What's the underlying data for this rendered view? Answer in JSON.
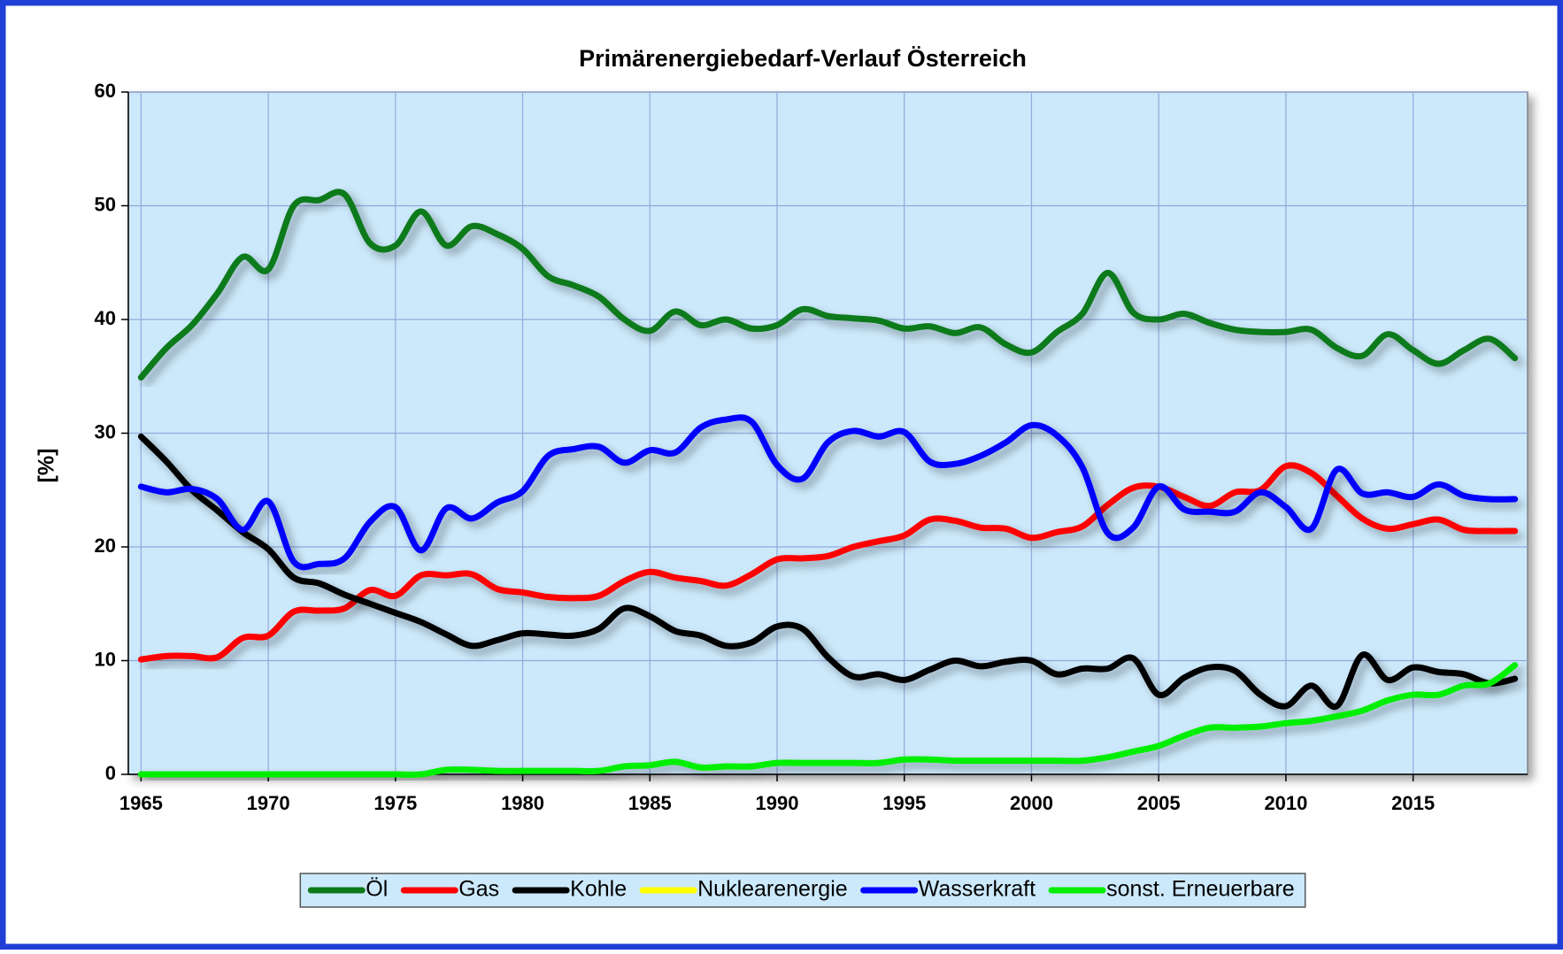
{
  "chart_data": {
    "type": "line",
    "title": "Primärenergiebedarf-Verlauf Österreich",
    "y_label": "[%]",
    "x": [
      1965,
      1966,
      1967,
      1968,
      1969,
      1970,
      1971,
      1972,
      1973,
      1974,
      1975,
      1976,
      1977,
      1978,
      1979,
      1980,
      1981,
      1982,
      1983,
      1984,
      1985,
      1986,
      1987,
      1988,
      1989,
      1990,
      1991,
      1992,
      1993,
      1994,
      1995,
      1996,
      1997,
      1998,
      1999,
      2000,
      2001,
      2002,
      2003,
      2004,
      2005,
      2006,
      2007,
      2008,
      2009,
      2010,
      2011,
      2012,
      2013,
      2014,
      2015,
      2016,
      2017,
      2018,
      2019
    ],
    "xlim": [
      1964.5,
      2019.5
    ],
    "xticks": [
      1965,
      1970,
      1975,
      1980,
      1985,
      1990,
      1995,
      2000,
      2005,
      2010,
      2015
    ],
    "ylim": [
      0,
      60
    ],
    "yticks": [
      0,
      10,
      20,
      30,
      40,
      50,
      60
    ],
    "grid": true,
    "legend": "bottom",
    "series": [
      {
        "name": "Öl",
        "color": "#0f7a1a",
        "values": [
          34.9,
          37.5,
          39.5,
          42.3,
          45.5,
          44.4,
          50,
          50.5,
          51,
          46.7,
          46.5,
          49.5,
          46.5,
          48.2,
          47.5,
          46.2,
          43.8,
          43,
          42,
          40,
          39,
          40.7,
          39.5,
          40,
          39.2,
          39.5,
          40.9,
          40.3,
          40.1,
          39.9,
          39.2,
          39.4,
          38.8,
          39.3,
          37.8,
          37.1,
          38.9,
          40.5,
          44.1,
          40.6,
          40,
          40.5,
          39.7,
          39.1,
          38.9,
          38.9,
          39.1,
          37.5,
          36.8,
          38.7,
          37.3,
          36.1,
          37.3,
          38.3,
          36.6
        ]
      },
      {
        "name": "Gas",
        "color": "#ff0000",
        "values": [
          10.1,
          10.4,
          10.4,
          10.3,
          12,
          12.2,
          14.3,
          14.4,
          14.6,
          16.2,
          15.7,
          17.5,
          17.5,
          17.6,
          16.3,
          16,
          15.6,
          15.5,
          15.7,
          17,
          17.8,
          17.3,
          17,
          16.6,
          17.6,
          18.9,
          19,
          19.2,
          20,
          20.5,
          21,
          22.4,
          22.3,
          21.7,
          21.6,
          20.8,
          21.3,
          21.8,
          23.7,
          25.2,
          25.3,
          24.4,
          23.6,
          24.8,
          25,
          27.1,
          26.5,
          24.5,
          22.5,
          21.6,
          22,
          22.4,
          21.5,
          21.4,
          21.4
        ]
      },
      {
        "name": "Kohle",
        "color": "#000000",
        "values": [
          29.7,
          27.5,
          25,
          23.2,
          21.3,
          19.8,
          17.3,
          16.8,
          15.8,
          15,
          14.2,
          13.4,
          12.3,
          11.3,
          11.8,
          12.4,
          12.3,
          12.2,
          12.8,
          14.6,
          13.9,
          12.6,
          12.2,
          11.3,
          11.6,
          13,
          12.8,
          10.3,
          8.6,
          8.8,
          8.3,
          9.2,
          10,
          9.5,
          9.9,
          10,
          8.8,
          9.3,
          9.3,
          10.2,
          7,
          8.5,
          9.4,
          9.1,
          7,
          6,
          7.8,
          6,
          10.5,
          8.3,
          9.4,
          9,
          8.8,
          8,
          8.4
        ]
      },
      {
        "name": "Nuklearenergie",
        "color": "#ffff00",
        "values": [
          0,
          0,
          0,
          0,
          0,
          0,
          0,
          0,
          0,
          0,
          0,
          0,
          0,
          0,
          0,
          0,
          0,
          0,
          0,
          0,
          0,
          0,
          0,
          0,
          0,
          0,
          0,
          0,
          0,
          0,
          0,
          0,
          0,
          0,
          0,
          0,
          0,
          0,
          0,
          0,
          0,
          0,
          0,
          0,
          0,
          0,
          0,
          0,
          0,
          0,
          0,
          0,
          0,
          0,
          0
        ]
      },
      {
        "name": "Wasserkraft",
        "color": "#0000ff",
        "values": [
          25.3,
          24.8,
          25.1,
          24.2,
          21.5,
          24,
          18.7,
          18.5,
          19,
          22.2,
          23.5,
          19.7,
          23.4,
          22.5,
          23.9,
          24.9,
          28,
          28.6,
          28.8,
          27.4,
          28.5,
          28.3,
          30.5,
          31.2,
          31,
          27.2,
          26,
          29.2,
          30.2,
          29.7,
          30.1,
          27.5,
          27.3,
          28,
          29.2,
          30.7,
          29.8,
          27,
          21.2,
          21.7,
          25.3,
          23.3,
          23.1,
          23.1,
          24.8,
          23.5,
          21.6,
          26.8,
          24.7,
          24.8,
          24.4,
          25.5,
          24.5,
          24.2,
          24.2
        ]
      },
      {
        "name": "sonst. Erneuerbare",
        "color": "#00ee00",
        "values": [
          0,
          0,
          0,
          0,
          0,
          0,
          0,
          0,
          0,
          0,
          0,
          0,
          0.4,
          0.4,
          0.3,
          0.3,
          0.3,
          0.3,
          0.3,
          0.7,
          0.8,
          1.1,
          0.6,
          0.7,
          0.7,
          1,
          1,
          1,
          1,
          1,
          1.3,
          1.3,
          1.2,
          1.2,
          1.2,
          1.2,
          1.2,
          1.2,
          1.5,
          2,
          2.5,
          3.4,
          4.1,
          4.1,
          4.2,
          4.5,
          4.7,
          5.1,
          5.6,
          6.5,
          7,
          7,
          7.8,
          8,
          9.6
        ]
      }
    ]
  }
}
